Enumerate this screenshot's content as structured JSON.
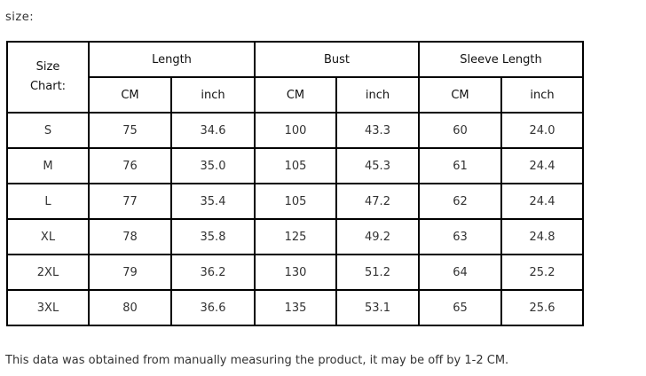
{
  "header": {
    "label": "size:"
  },
  "table": {
    "corner": "Size Chart:",
    "groups": [
      "Length",
      "Bust",
      "Sleeve Length"
    ],
    "units": [
      "CM",
      "inch",
      "CM",
      "inch",
      "CM",
      "inch"
    ],
    "rows": [
      [
        "S",
        "75",
        "34.6",
        "100",
        "43.3",
        "60",
        "24.0"
      ],
      [
        "M",
        "76",
        "35.0",
        "105",
        "45.3",
        "61",
        "24.4"
      ],
      [
        "L",
        "77",
        "35.4",
        "105",
        "47.2",
        "62",
        "24.4"
      ],
      [
        "XL",
        "78",
        "35.8",
        "125",
        "49.2",
        "63",
        "24.8"
      ],
      [
        "2XL",
        "79",
        "36.2",
        "130",
        "51.2",
        "64",
        "25.2"
      ],
      [
        "3XL",
        "80",
        "36.6",
        "135",
        "53.1",
        "65",
        "25.6"
      ]
    ]
  },
  "footer": {
    "note": "This data was obtained from manually measuring the product, it may be off by 1-2 CM."
  }
}
